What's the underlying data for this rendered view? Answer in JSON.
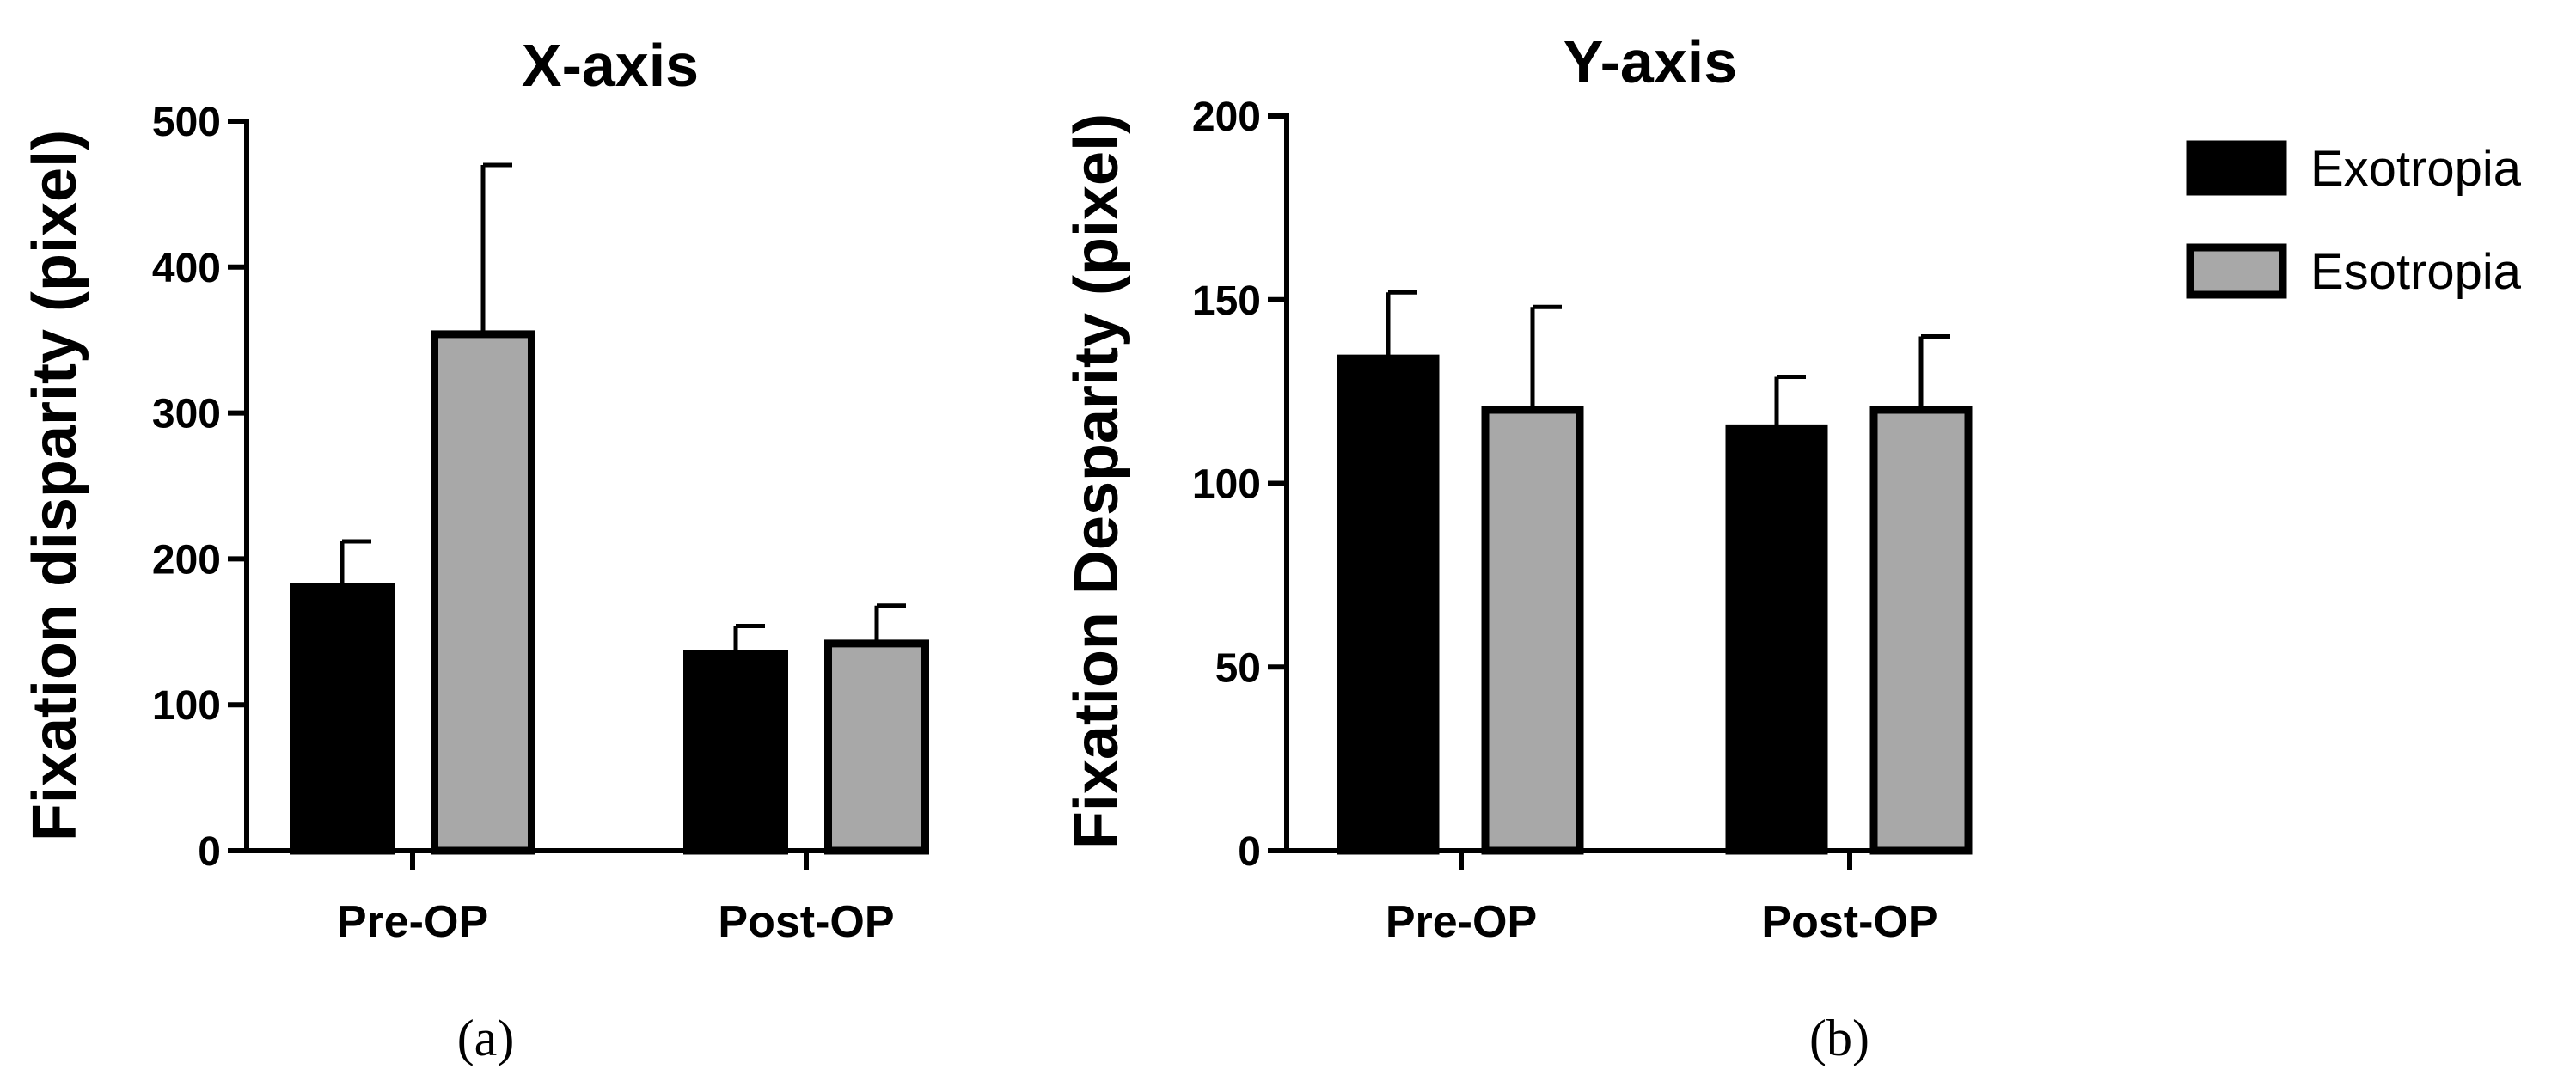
{
  "colors": {
    "exotropia": "#000000",
    "esotropia": "#a8a8a8",
    "axis": "#000000"
  },
  "legend": [
    {
      "name": "Exotropia",
      "color": "#000000"
    },
    {
      "name": "Esotropia",
      "color": "#a8a8a8"
    }
  ],
  "chart_data": [
    {
      "type": "bar",
      "panel_label": "(a)",
      "title": "X-axis",
      "xlabel": "",
      "ylabel": "Fixation disparity (pixel)",
      "ylim": [
        0,
        500
      ],
      "yticks": [
        0,
        100,
        200,
        300,
        400,
        500
      ],
      "categories": [
        "Pre-OP",
        "Post-OP"
      ],
      "series": [
        {
          "name": "Exotropia",
          "values": [
            181,
            135
          ],
          "error": [
            31,
            19
          ]
        },
        {
          "name": "Esotropia",
          "values": [
            354,
            142
          ],
          "error": [
            116,
            26
          ]
        }
      ]
    },
    {
      "type": "bar",
      "panel_label": "(b)",
      "title": "Y-axis",
      "xlabel": "",
      "ylabel": "Fixation Desparity (pixel)",
      "ylim": [
        0,
        200
      ],
      "yticks": [
        0,
        50,
        100,
        150,
        200
      ],
      "categories": [
        "Pre-OP",
        "Post-OP"
      ],
      "series": [
        {
          "name": "Exotropia",
          "values": [
            134,
            115
          ],
          "error": [
            18,
            14
          ]
        },
        {
          "name": "Esotropia",
          "values": [
            120,
            120
          ],
          "error": [
            28,
            20
          ]
        }
      ]
    }
  ]
}
